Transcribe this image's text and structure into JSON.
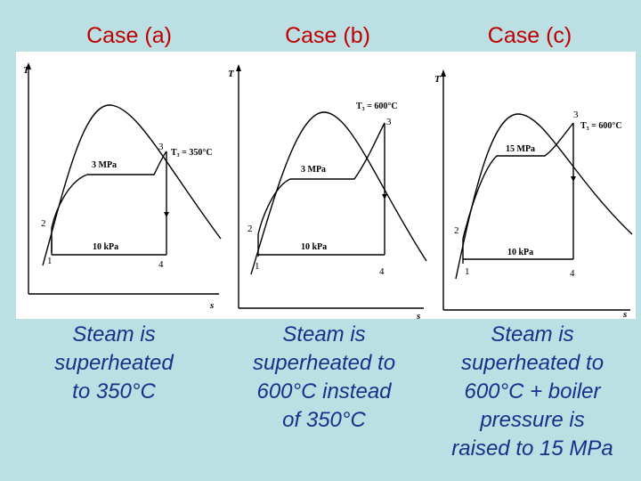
{
  "cases": [
    {
      "title": "Case (a)",
      "caption_lines": [
        "Steam is",
        "superheated",
        "to 350°C"
      ],
      "diagram": {
        "axis_y": "T",
        "axis_x": "s",
        "high_pressure": "3 MPa",
        "low_pressure": "10 kPa",
        "state_3_label": "T₃ = 350°C",
        "states": [
          "1",
          "2",
          "3",
          "4"
        ]
      }
    },
    {
      "title": "Case (b)",
      "caption_lines": [
        "Steam is",
        "superheated to",
        "600°C instead",
        "of 350°C"
      ],
      "diagram": {
        "axis_y": "T",
        "axis_x": "s",
        "high_pressure": "3 MPa",
        "low_pressure": "10 kPa",
        "state_3_label": "T₃ = 600°C",
        "states": [
          "1",
          "2",
          "3",
          "4"
        ]
      }
    },
    {
      "title": "Case (c)",
      "caption_lines": [
        "Steam is",
        "superheated to",
        "600°C + boiler",
        "pressure is",
        "raised to 15 MPa"
      ],
      "diagram": {
        "axis_y": "T",
        "axis_x": "s",
        "high_pressure": "15 MPa",
        "low_pressure": "10 kPa",
        "state_3_label": "T₃ = 600°C",
        "states": [
          "1",
          "2",
          "3",
          "4"
        ]
      }
    }
  ]
}
